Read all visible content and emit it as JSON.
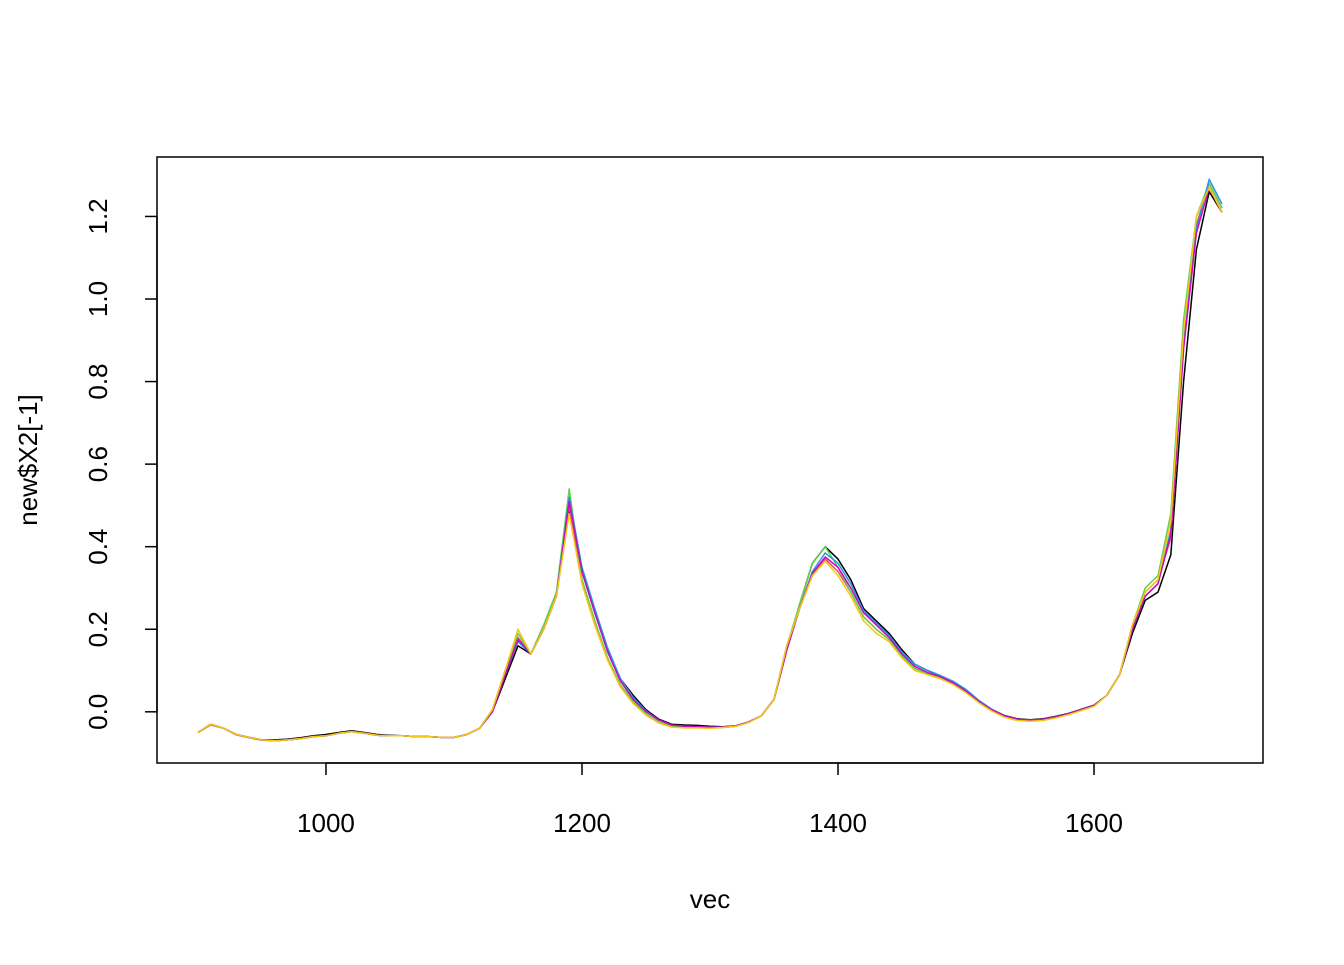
{
  "chart_data": {
    "type": "line",
    "x_label": "vec",
    "y_label": "new$X2[-1]",
    "xlim": [
      868,
      1732
    ],
    "ylim": [
      -0.124,
      1.344
    ],
    "xticks": [
      1000,
      1200,
      1400,
      1600
    ],
    "yticks": [
      {
        "value": 0,
        "label": "0.0"
      },
      {
        "value": 0.2,
        "label": "0.2"
      },
      {
        "value": 0.4,
        "label": "0.4"
      },
      {
        "value": 0.6,
        "label": "0.6"
      },
      {
        "value": 0.8,
        "label": "0.8"
      },
      {
        "value": 1,
        "label": "1.0"
      },
      {
        "value": 1.2,
        "label": "1.2"
      }
    ],
    "x": [
      900,
      910,
      920,
      930,
      940,
      950,
      960,
      970,
      980,
      990,
      1000,
      1010,
      1020,
      1030,
      1040,
      1050,
      1060,
      1070,
      1080,
      1090,
      1100,
      1110,
      1120,
      1130,
      1140,
      1150,
      1160,
      1170,
      1180,
      1190,
      1200,
      1210,
      1220,
      1230,
      1240,
      1250,
      1260,
      1270,
      1280,
      1290,
      1300,
      1310,
      1320,
      1330,
      1340,
      1350,
      1360,
      1370,
      1380,
      1390,
      1400,
      1410,
      1420,
      1430,
      1440,
      1450,
      1460,
      1470,
      1480,
      1490,
      1500,
      1510,
      1520,
      1530,
      1540,
      1550,
      1560,
      1570,
      1580,
      1590,
      1600,
      1610,
      1620,
      1630,
      1640,
      1650,
      1660,
      1670,
      1680,
      1690,
      1700
    ],
    "series": [
      {
        "color": "#000000",
        "values": [
          -0.05,
          -0.03,
          -0.04,
          -0.055,
          -0.062,
          -0.068,
          -0.068,
          -0.066,
          -0.063,
          -0.058,
          -0.055,
          -0.05,
          -0.046,
          -0.05,
          -0.055,
          -0.057,
          -0.058,
          -0.06,
          -0.06,
          -0.062,
          -0.062,
          -0.055,
          -0.04,
          0.0,
          0.08,
          0.16,
          0.14,
          0.2,
          0.28,
          0.49,
          0.34,
          0.24,
          0.15,
          0.08,
          0.04,
          0.005,
          -0.018,
          -0.03,
          -0.032,
          -0.033,
          -0.035,
          -0.036,
          -0.034,
          -0.025,
          -0.01,
          0.03,
          0.15,
          0.26,
          0.36,
          0.4,
          0.37,
          0.32,
          0.25,
          0.22,
          0.19,
          0.15,
          0.115,
          0.1,
          0.087,
          0.072,
          0.052,
          0.027,
          0.006,
          -0.009,
          -0.017,
          -0.019,
          -0.017,
          -0.011,
          -0.004,
          0.006,
          0.016,
          0.04,
          0.09,
          0.19,
          0.27,
          0.29,
          0.38,
          0.8,
          1.12,
          1.26,
          1.21
        ]
      },
      {
        "color": "#DF536B",
        "values": [
          -0.05,
          -0.032,
          -0.04,
          -0.056,
          -0.063,
          -0.069,
          -0.07,
          -0.068,
          -0.065,
          -0.06,
          -0.058,
          -0.052,
          -0.048,
          -0.052,
          -0.057,
          -0.058,
          -0.058,
          -0.06,
          -0.06,
          -0.062,
          -0.062,
          -0.055,
          -0.04,
          0.005,
          0.1,
          0.18,
          0.14,
          0.2,
          0.28,
          0.5,
          0.32,
          0.22,
          0.13,
          0.065,
          0.025,
          -0.005,
          -0.025,
          -0.035,
          -0.038,
          -0.038,
          -0.039,
          -0.038,
          -0.035,
          -0.026,
          -0.01,
          0.03,
          0.16,
          0.25,
          0.33,
          0.37,
          0.34,
          0.29,
          0.23,
          0.2,
          0.175,
          0.135,
          0.105,
          0.092,
          0.082,
          0.068,
          0.048,
          0.023,
          0.003,
          -0.012,
          -0.02,
          -0.022,
          -0.02,
          -0.014,
          -0.006,
          0.004,
          0.014,
          0.04,
          0.09,
          0.21,
          0.29,
          0.32,
          0.42,
          0.88,
          1.18,
          1.28,
          1.22
        ]
      },
      {
        "color": "#61D04F",
        "values": [
          -0.05,
          -0.03,
          -0.04,
          -0.055,
          -0.062,
          -0.068,
          -0.07,
          -0.068,
          -0.065,
          -0.06,
          -0.058,
          -0.052,
          -0.048,
          -0.052,
          -0.057,
          -0.058,
          -0.058,
          -0.06,
          -0.06,
          -0.062,
          -0.062,
          -0.055,
          -0.04,
          0.005,
          0.1,
          0.19,
          0.14,
          0.21,
          0.29,
          0.54,
          0.32,
          0.22,
          0.13,
          0.065,
          0.025,
          -0.005,
          -0.025,
          -0.035,
          -0.038,
          -0.038,
          -0.039,
          -0.038,
          -0.035,
          -0.026,
          -0.01,
          0.03,
          0.16,
          0.26,
          0.36,
          0.4,
          0.35,
          0.29,
          0.23,
          0.2,
          0.175,
          0.135,
          0.105,
          0.092,
          0.082,
          0.068,
          0.048,
          0.023,
          0.003,
          -0.012,
          -0.02,
          -0.022,
          -0.02,
          -0.014,
          -0.006,
          0.004,
          0.014,
          0.04,
          0.09,
          0.21,
          0.3,
          0.33,
          0.48,
          0.95,
          1.2,
          1.28,
          1.22
        ]
      },
      {
        "color": "#2297E6",
        "values": [
          -0.05,
          -0.03,
          -0.04,
          -0.055,
          -0.062,
          -0.068,
          -0.07,
          -0.068,
          -0.065,
          -0.06,
          -0.058,
          -0.052,
          -0.048,
          -0.052,
          -0.057,
          -0.058,
          -0.058,
          -0.06,
          -0.06,
          -0.062,
          -0.062,
          -0.055,
          -0.04,
          0.0,
          0.09,
          0.17,
          0.14,
          0.2,
          0.28,
          0.52,
          0.35,
          0.25,
          0.155,
          0.08,
          0.035,
          0.002,
          -0.02,
          -0.032,
          -0.035,
          -0.036,
          -0.037,
          -0.037,
          -0.034,
          -0.025,
          -0.01,
          0.03,
          0.15,
          0.25,
          0.34,
          0.385,
          0.36,
          0.31,
          0.245,
          0.215,
          0.185,
          0.145,
          0.115,
          0.1,
          0.088,
          0.074,
          0.054,
          0.028,
          0.006,
          -0.01,
          -0.018,
          -0.02,
          -0.018,
          -0.012,
          -0.005,
          0.005,
          0.015,
          0.04,
          0.09,
          0.2,
          0.28,
          0.31,
          0.44,
          0.9,
          1.17,
          1.29,
          1.23
        ]
      },
      {
        "color": "#CD0BBC",
        "values": [
          -0.05,
          -0.03,
          -0.04,
          -0.055,
          -0.062,
          -0.068,
          -0.07,
          -0.068,
          -0.065,
          -0.06,
          -0.058,
          -0.052,
          -0.048,
          -0.052,
          -0.057,
          -0.058,
          -0.058,
          -0.06,
          -0.06,
          -0.062,
          -0.062,
          -0.055,
          -0.04,
          0.0,
          0.09,
          0.175,
          0.14,
          0.2,
          0.28,
          0.51,
          0.34,
          0.24,
          0.145,
          0.075,
          0.03,
          0.0,
          -0.02,
          -0.032,
          -0.035,
          -0.036,
          -0.037,
          -0.037,
          -0.034,
          -0.025,
          -0.01,
          0.03,
          0.15,
          0.25,
          0.335,
          0.375,
          0.35,
          0.3,
          0.24,
          0.21,
          0.18,
          0.14,
          0.11,
          0.095,
          0.085,
          0.07,
          0.05,
          0.025,
          0.005,
          -0.01,
          -0.018,
          -0.02,
          -0.018,
          -0.012,
          -0.005,
          0.005,
          0.015,
          0.04,
          0.09,
          0.2,
          0.28,
          0.31,
          0.43,
          0.88,
          1.16,
          1.27,
          1.21
        ]
      },
      {
        "color": "#F5C710",
        "values": [
          -0.05,
          -0.03,
          -0.04,
          -0.055,
          -0.062,
          -0.068,
          -0.07,
          -0.068,
          -0.065,
          -0.06,
          -0.058,
          -0.052,
          -0.048,
          -0.052,
          -0.057,
          -0.058,
          -0.058,
          -0.06,
          -0.06,
          -0.062,
          -0.062,
          -0.055,
          -0.04,
          0.005,
          0.1,
          0.2,
          0.14,
          0.2,
          0.28,
          0.48,
          0.31,
          0.21,
          0.125,
          0.06,
          0.02,
          -0.008,
          -0.027,
          -0.037,
          -0.039,
          -0.039,
          -0.04,
          -0.038,
          -0.035,
          -0.026,
          -0.01,
          0.03,
          0.16,
          0.25,
          0.33,
          0.365,
          0.33,
          0.28,
          0.22,
          0.19,
          0.17,
          0.13,
          0.1,
          0.09,
          0.08,
          0.066,
          0.046,
          0.022,
          0.002,
          -0.013,
          -0.021,
          -0.023,
          -0.021,
          -0.015,
          -0.007,
          0.003,
          0.013,
          0.04,
          0.09,
          0.21,
          0.29,
          0.32,
          0.46,
          0.92,
          1.2,
          1.27,
          1.21
        ]
      }
    ]
  }
}
